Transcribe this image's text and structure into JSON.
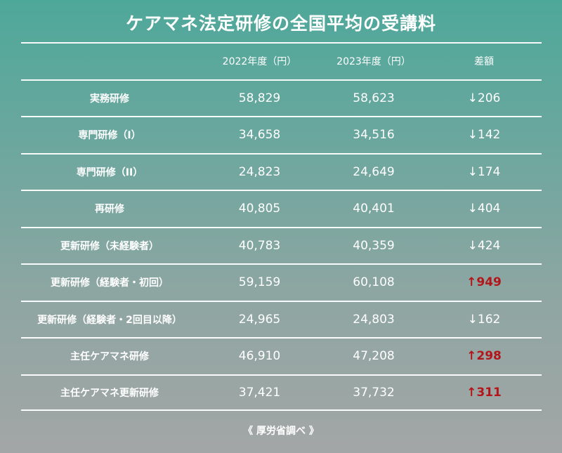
{
  "title": "ケアマネ法定研修の全国平均の受講料",
  "columns": {
    "name": "",
    "y2022": "2022年度（円）",
    "y2023": "2023年度（円）",
    "diff": "差額"
  },
  "rows": [
    {
      "name": "実務研修",
      "y2022": "58,829",
      "y2023": "58,623",
      "diff": "↓206",
      "direction": "down"
    },
    {
      "name": "専門研修（I）",
      "y2022": "34,658",
      "y2023": "34,516",
      "diff": "↓142",
      "direction": "down"
    },
    {
      "name": "専門研修（II）",
      "y2022": "24,823",
      "y2023": "24,649",
      "diff": "↓174",
      "direction": "down"
    },
    {
      "name": "再研修",
      "y2022": "40,805",
      "y2023": "40,401",
      "diff": "↓404",
      "direction": "down"
    },
    {
      "name": "更新研修（未経験者）",
      "y2022": "40,783",
      "y2023": "40,359",
      "diff": "↓424",
      "direction": "down"
    },
    {
      "name": "更新研修（経験者・初回）",
      "y2022": "59,159",
      "y2023": "60,108",
      "diff": "↑949",
      "direction": "up"
    },
    {
      "name": "更新研修（経験者・2回目以降）",
      "y2022": "24,965",
      "y2023": "24,803",
      "diff": "↓162",
      "direction": "down"
    },
    {
      "name": "主任ケアマネ研修",
      "y2022": "46,910",
      "y2023": "47,208",
      "diff": "↑298",
      "direction": "up"
    },
    {
      "name": "主任ケアマネ更新研修",
      "y2022": "37,421",
      "y2023": "37,732",
      "diff": "↑311",
      "direction": "up"
    }
  ],
  "source": "《 厚労省調べ 》",
  "colors": {
    "increase": "#b3161a",
    "decrease": "#ffffff"
  }
}
